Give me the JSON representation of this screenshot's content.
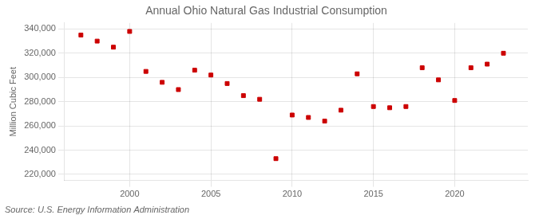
{
  "chart_data": {
    "type": "scatter",
    "title": "Annual Ohio Natural Gas Industrial Consumption",
    "ylabel": "Million Cubic Feet",
    "annotation": "Source: U.S. Energy Information Administration",
    "x": [
      1997,
      1998,
      1999,
      2000,
      2001,
      2002,
      2003,
      2004,
      2005,
      2006,
      2007,
      2008,
      2009,
      2010,
      2011,
      2012,
      2013,
      2014,
      2015,
      2016,
      2017,
      2018,
      2019,
      2020,
      2021,
      2022,
      2023
    ],
    "values": [
      335000,
      330000,
      325000,
      338000,
      305000,
      296000,
      290000,
      306000,
      302000,
      295000,
      285000,
      282000,
      233000,
      269000,
      267000,
      264000,
      273000,
      303000,
      276000,
      275000,
      276000,
      308000,
      298000,
      281000,
      308000,
      311000,
      320000
    ],
    "color": "#cc0000",
    "marker": "square",
    "xlim": [
      1996.0,
      2024.5
    ],
    "xticks": [
      2000,
      2005,
      2010,
      2015,
      2020
    ],
    "ylim": [
      215000,
      345000
    ],
    "yticks": [
      {
        "value": 220000,
        "label": "220,000"
      },
      {
        "value": 240000,
        "label": "240,000"
      },
      {
        "value": 260000,
        "label": "260,000"
      },
      {
        "value": 280000,
        "label": "280,000"
      },
      {
        "value": 300000,
        "label": "300,000"
      },
      {
        "value": 320000,
        "label": "320,000"
      },
      {
        "value": 340000,
        "label": "340,000"
      }
    ],
    "grid": true
  }
}
